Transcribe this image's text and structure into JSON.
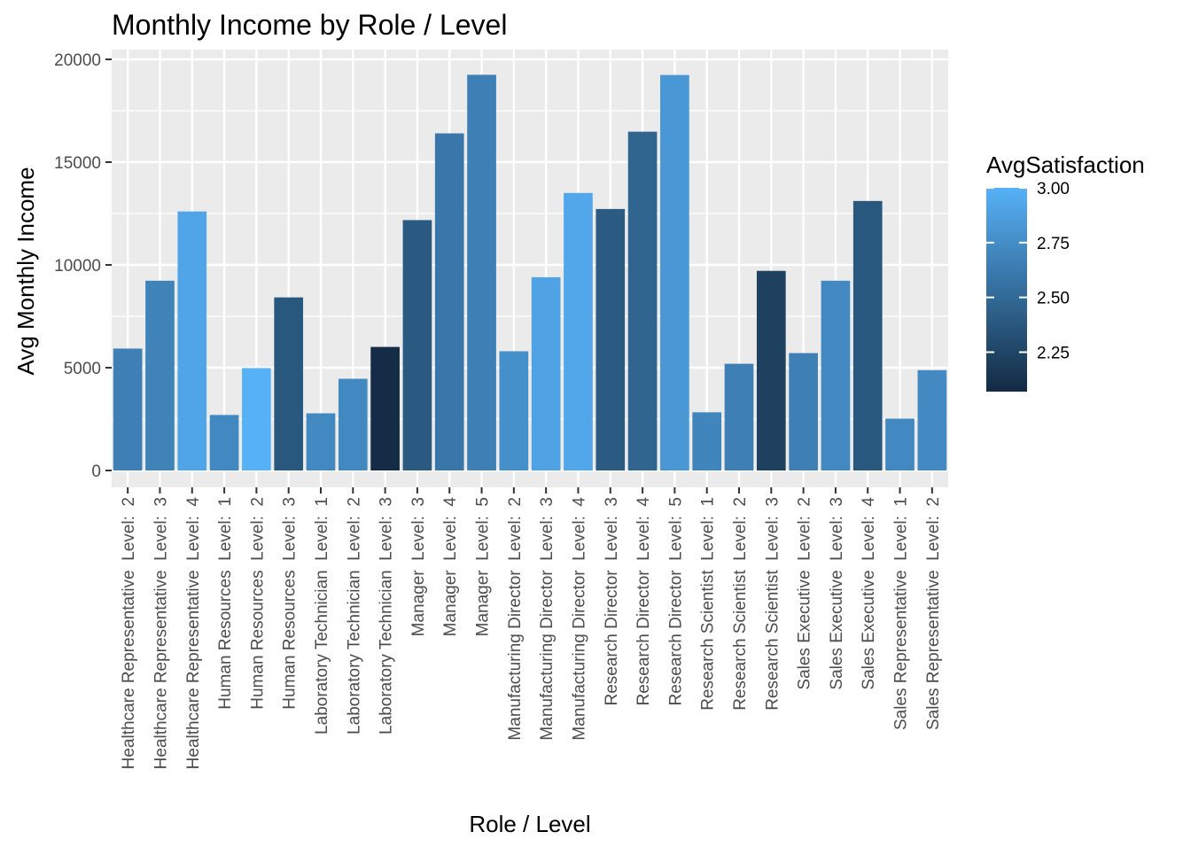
{
  "chart_data": {
    "type": "bar",
    "title": "Monthly Income by Role / Level",
    "xlabel": "Role / Level",
    "ylabel": "Avg Monthly Income",
    "ylim": [
      0,
      20000
    ],
    "yticks": [
      0,
      5000,
      10000,
      15000,
      20000
    ],
    "yticklabels": [
      "0",
      "5000",
      "10000",
      "15000",
      "20000"
    ],
    "categories": [
      "Healthcare Representative  Level:  2",
      "Healthcare Representative  Level:  3",
      "Healthcare Representative  Level:  4",
      "Human Resources  Level:  1",
      "Human Resources  Level:  2",
      "Human Resources  Level:  3",
      "Laboratory Technician  Level:  1",
      "Laboratory Technician  Level:  2",
      "Laboratory Technician  Level:  3",
      "Manager  Level:  3",
      "Manager  Level:  4",
      "Manager  Level:  5",
      "Manufacturing Director  Level:  2",
      "Manufacturing Director  Level:  3",
      "Manufacturing Director  Level:  4",
      "Research Director  Level:  3",
      "Research Director  Level:  4",
      "Research Director  Level:  5",
      "Research Scientist  Level:  1",
      "Research Scientist  Level:  2",
      "Research Scientist  Level:  3",
      "Sales Executive  Level:  2",
      "Sales Executive  Level:  3",
      "Sales Executive  Level:  4",
      "Sales Representative  Level:  1",
      "Sales Representative  Level:  2"
    ],
    "values": [
      5930,
      9230,
      12600,
      2700,
      4980,
      8420,
      2780,
      4460,
      6010,
      12180,
      16400,
      19250,
      5800,
      9400,
      13500,
      12720,
      16480,
      19240,
      2830,
      5190,
      9710,
      5710,
      9230,
      13110,
      2520,
      4880
    ],
    "fill_variable": "AvgSatisfaction",
    "fill_values": [
      2.66,
      2.68,
      2.92,
      2.72,
      3.0,
      2.38,
      2.72,
      2.72,
      2.08,
      2.39,
      2.6,
      2.66,
      2.77,
      2.9,
      2.93,
      2.4,
      2.47,
      2.82,
      2.7,
      2.66,
      2.22,
      2.66,
      2.72,
      2.38,
      2.72,
      2.73
    ],
    "legend": {
      "title": "AvgSatisfaction",
      "range": [
        2.07,
        3.0
      ],
      "ticks": [
        2.25,
        2.5,
        2.75,
        3.0
      ],
      "ticklabels": [
        "2.25",
        "2.50",
        "2.75",
        "3.00"
      ],
      "low_color": "#132B43",
      "high_color": "#56B1F7",
      "position": "right"
    },
    "grid": true,
    "panel_background": "#EBEBEB",
    "grid_color": "#FFFFFF"
  }
}
